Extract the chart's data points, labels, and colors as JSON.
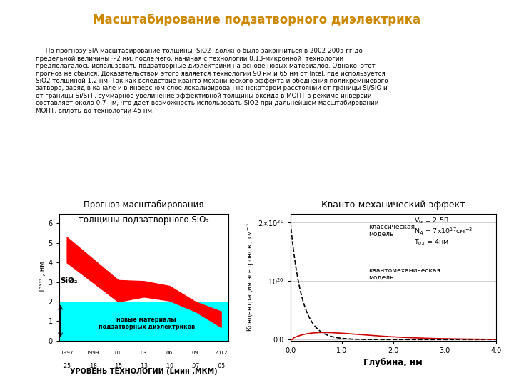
{
  "title": "Масштабирование подзатворного диэлектрика",
  "title_color": "#CC8800",
  "body_text": "     По прогнозу SIA масштабирование толщины  SiO2  должно было закончиться в 2002-2005 гг до\nпредельной величины ~2 нм, после чего, начиная с технологии 0,13-микронной  технологии\nпредполагалось использовать подзатворные диэлектрики на основе новых материалов. Однако, этот\nпрогноз не сбылся. Доказательством этого является технологии 90 нм и 65 нм от Intel, где используется\nSiO2 толщиной 1,2 нм. Так как вследствие кванто-механического эффекта и обеднения поликремниевого\nзатвора, заряд в канале и в инверсном слое локализирован на некотором расстоянии от границы Si/SiO и\nот границы Si/Si+, суммарное увеличение эффективной толщины оксида в МОПТ в режиме инверсии\nсоставляет около 0,7 нм, что дает возможность использовать SiO2 при дальнейшем масштабировании\nМОПТ, вплоть до технологии 45 нм.",
  "left_chart_title_line1": "Прогноз масштабирования",
  "left_chart_title_line2": "толщины подзатворного SiO₂",
  "right_chart_title": "Кванто-механический эффект",
  "sio2_upper": [
    5.3,
    4.2,
    3.1,
    3.05,
    2.8,
    2.0,
    1.5
  ],
  "sio2_lower": [
    4.0,
    3.0,
    2.0,
    2.25,
    2.05,
    1.5,
    0.7
  ],
  "new_mat_level": 2.0,
  "cyan_color": "#00FFFF",
  "red_color": "#FF0000",
  "ylabel_left": "Tᵒˣᶟᶟ , нм",
  "xlabel_label": "УРОВЕНЬ ТЕХНОЛОГИИ (Lмин ,МКМ)",
  "right_ylabel": "Концентрация элетронов , см-3",
  "right_xlabel": "Глубина, нм",
  "classic_label": "классическая\nмодель",
  "quantum_label": "квантомеханическая\nмодель",
  "background_color": "#FFFFFF"
}
